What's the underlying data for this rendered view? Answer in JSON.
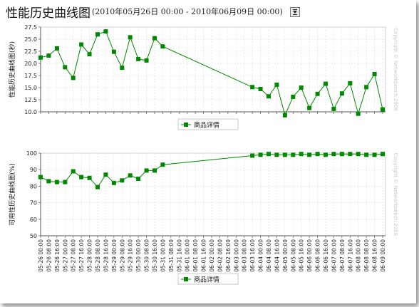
{
  "header": {
    "title": "性能历史曲线图",
    "date_range": "(2010年05月26日 00:00 - 2010年06月09日 00:00)"
  },
  "colors": {
    "series": "#008800",
    "grid": "#dddddd",
    "watermark": "#c8c8c8"
  },
  "icons": {
    "calendar": "calendar-icon"
  },
  "chart_data": [
    {
      "type": "line",
      "ylabel": "性能历史曲线图(秒)",
      "ylim": [
        10,
        27.5
      ],
      "yticks": [
        "10.0",
        "12.5",
        "15.0",
        "17.5",
        "20.0",
        "22.5",
        "25.0",
        "27.5"
      ],
      "yticks_values": [
        10,
        12.5,
        15,
        17.5,
        20,
        22.5,
        25,
        27.5
      ],
      "grid": true,
      "legend_position": "bottom-center",
      "watermark": "Copyright © Networkbench 2008",
      "series": [
        {
          "name": "商品详情",
          "x": [
            "05-26 00:00",
            "05-26 08:00",
            "05-26 16:00",
            "05-27 00:00",
            "05-27 08:00",
            "05-27 16:00",
            "05-28 00:00",
            "05-28 08:00",
            "05-28 16:00",
            "05-29 00:00",
            "05-29 08:00",
            "05-29 16:00",
            "05-30 00:00",
            "05-30 08:00",
            "05-30 16:00",
            "05-31 00:00",
            "06-03 16:00",
            "06-04 00:00",
            "06-04 08:00",
            "06-04 16:00",
            "06-05 00:00",
            "06-05 08:00",
            "06-05 16:00",
            "06-06 00:00",
            "06-06 08:00",
            "06-06 16:00",
            "06-07 00:00",
            "06-07 08:00",
            "06-07 16:00",
            "06-08 00:00",
            "06-08 08:00",
            "06-08 16:00",
            "06-09 00:00"
          ],
          "values": [
            21.2,
            21.6,
            23.1,
            19.2,
            17.0,
            23.9,
            21.9,
            26.0,
            26.6,
            22.4,
            19.1,
            25.4,
            20.9,
            20.6,
            25.2,
            23.5,
            15.1,
            14.7,
            13.2,
            15.6,
            9.3,
            13.1,
            15.0,
            10.8,
            13.7,
            15.8,
            10.6,
            13.8,
            15.9,
            9.6,
            15.1,
            17.8,
            10.5
          ]
        }
      ]
    },
    {
      "type": "line",
      "ylabel": "可用性历史曲线图(%)",
      "ylim": [
        50,
        100
      ],
      "yticks": [
        "50",
        "60",
        "70",
        "80",
        "90",
        "100"
      ],
      "yticks_values": [
        50,
        60,
        70,
        80,
        90,
        100
      ],
      "grid": true,
      "legend_position": "bottom-center",
      "watermark": "Copyright © Networkbench 2008",
      "categories": [
        "05-26 00:00",
        "05-26 08:00",
        "05-26 16:00",
        "05-27 00:00",
        "05-27 08:00",
        "05-27 16:00",
        "05-28 00:00",
        "05-28 08:00",
        "05-28 16:00",
        "05-29 00:00",
        "05-29 08:00",
        "05-29 16:00",
        "05-30 00:00",
        "05-30 08:00",
        "05-30 16:00",
        "05-31 00:00",
        "05-31 08:00",
        "05-31 16:00",
        "06-01 00:00",
        "06-01 08:00",
        "06-01 16:00",
        "06-02 00:00",
        "06-02 08:00",
        "06-02 16:00",
        "06-03 00:00",
        "06-03 08:00",
        "06-03 16:00",
        "06-04 00:00",
        "06-04 08:00",
        "06-04 16:00",
        "06-05 00:00",
        "06-05 08:00",
        "06-05 16:00",
        "06-06 00:00",
        "06-06 08:00",
        "06-06 16:00",
        "06-07 00:00",
        "06-07 08:00",
        "06-07 16:00",
        "06-08 00:00",
        "06-08 08:00",
        "06-08 16:00",
        "06-09 00:00"
      ],
      "series": [
        {
          "name": "商品详情",
          "x": [
            "05-26 00:00",
            "05-26 08:00",
            "05-26 16:00",
            "05-27 00:00",
            "05-27 08:00",
            "05-27 16:00",
            "05-28 00:00",
            "05-28 08:00",
            "05-28 16:00",
            "05-29 00:00",
            "05-29 08:00",
            "05-29 16:00",
            "05-30 00:00",
            "05-30 08:00",
            "05-30 16:00",
            "05-31 00:00",
            "06-03 16:00",
            "06-04 00:00",
            "06-04 08:00",
            "06-04 16:00",
            "06-05 00:00",
            "06-05 08:00",
            "06-05 16:00",
            "06-06 00:00",
            "06-06 08:00",
            "06-06 16:00",
            "06-07 00:00",
            "06-07 08:00",
            "06-07 16:00",
            "06-08 00:00",
            "06-08 08:00",
            "06-08 16:00",
            "06-09 00:00"
          ],
          "values": [
            85.5,
            83.0,
            82.5,
            82.5,
            89.0,
            85.5,
            85.0,
            79.5,
            87.0,
            82.0,
            83.5,
            86.5,
            84.5,
            89.5,
            89.5,
            93.0,
            98.5,
            99.0,
            99.5,
            99.0,
            99.0,
            99.0,
            99.5,
            99.0,
            99.5,
            99.0,
            99.5,
            99.5,
            99.5,
            99.5,
            99.0,
            99.0,
            99.5
          ]
        }
      ]
    }
  ]
}
